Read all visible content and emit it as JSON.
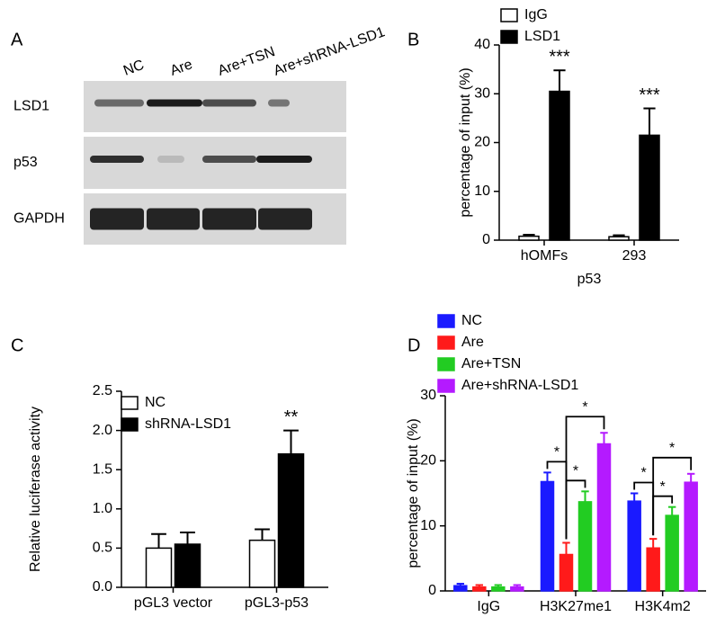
{
  "blot": {
    "panel_label": "A",
    "lanes": [
      "NC",
      "Are",
      "Are+TSN",
      "Are+shRNA-LSD1"
    ],
    "rows": [
      "LSD1",
      "p53",
      "GAPDH"
    ]
  },
  "chart_data": [
    {
      "type": "bar",
      "panel_label": "B",
      "y_label": "percentage of input (%)",
      "x_label": "p53",
      "categories": [
        "hOMFs",
        "293"
      ],
      "series": [
        {
          "name": "IgG",
          "color": "#ffffff",
          "values": [
            0.8,
            0.7
          ],
          "errors": [
            0.3,
            0.3
          ]
        },
        {
          "name": "LSD1",
          "color": "#000000",
          "values": [
            30.5,
            21.5
          ],
          "errors": [
            4.3,
            5.5
          ],
          "annotations": [
            "***",
            "***"
          ]
        }
      ],
      "ylim": [
        0,
        40
      ],
      "yticks": [
        0,
        10,
        20,
        30,
        40
      ]
    },
    {
      "type": "bar",
      "panel_label": "C",
      "y_label": "Relative luciferase activity",
      "categories": [
        "pGL3 vector",
        "pGL3-p53"
      ],
      "series": [
        {
          "name": "NC",
          "color": "#ffffff",
          "values": [
            0.5,
            0.6
          ],
          "errors": [
            0.18,
            0.14
          ]
        },
        {
          "name": "shRNA-LSD1",
          "color": "#000000",
          "values": [
            0.55,
            1.7
          ],
          "errors": [
            0.15,
            0.3
          ],
          "annotations": [
            null,
            "**"
          ]
        }
      ],
      "ylim": [
        0,
        2.5
      ],
      "yticks": [
        {
          "value": 0,
          "label": "0.0"
        },
        0.5,
        {
          "value": 1,
          "label": "1.0"
        },
        1.5,
        {
          "value": 2,
          "label": "2.0"
        },
        2.5
      ]
    },
    {
      "type": "bar",
      "panel_label": "D",
      "y_label": "percentage of input (%)",
      "categories": [
        "IgG",
        "H3K27me1",
        "H3K4m2"
      ],
      "series": [
        {
          "name": "NC",
          "color": "#1a1aff",
          "values": [
            0.8,
            16.8,
            13.8
          ],
          "errors": [
            0.3,
            1.4,
            1.2
          ]
        },
        {
          "name": "Are",
          "color": "#ff1a1a",
          "values": [
            0.6,
            5.6,
            6.6
          ],
          "errors": [
            0.3,
            1.8,
            1.4
          ]
        },
        {
          "name": "Are+TSN",
          "color": "#22cc22",
          "values": [
            0.6,
            13.7,
            11.6
          ],
          "errors": [
            0.3,
            1.6,
            1.3
          ]
        },
        {
          "name": "Are+shRNA-LSD1",
          "color": "#b41aff",
          "values": [
            0.6,
            22.6,
            16.7
          ],
          "errors": [
            0.3,
            1.7,
            1.3
          ]
        }
      ],
      "comparisons": [
        {
          "category": 1,
          "series": [
            0,
            1
          ],
          "label": "*"
        },
        {
          "category": 1,
          "series": [
            1,
            2
          ],
          "label": "*"
        },
        {
          "category": 1,
          "series": [
            1,
            3
          ],
          "label": "*"
        },
        {
          "category": 2,
          "series": [
            0,
            1
          ],
          "label": "*"
        },
        {
          "category": 2,
          "series": [
            1,
            2
          ],
          "label": "*"
        },
        {
          "category": 2,
          "series": [
            1,
            3
          ],
          "label": "*"
        }
      ],
      "ylim": [
        0,
        30
      ],
      "yticks": [
        0,
        10,
        20,
        30
      ]
    }
  ]
}
